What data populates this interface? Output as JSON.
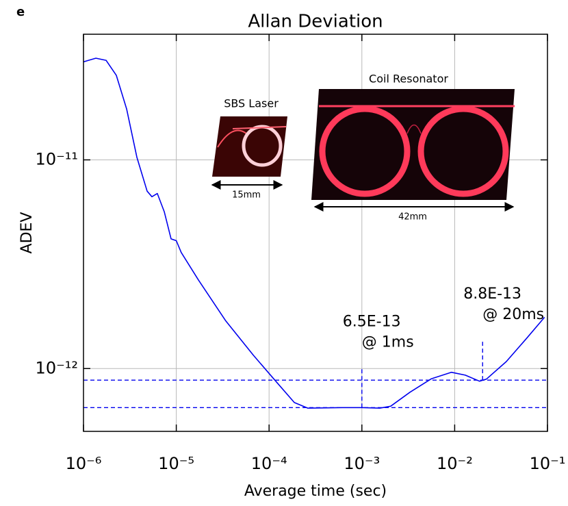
{
  "panel_label": "e",
  "chart_data": {
    "type": "line",
    "title": "Allan Deviation",
    "xlabel": "Average time (sec)",
    "ylabel": "ADEV",
    "xscale": "log",
    "yscale": "log",
    "grid": true,
    "xlim": [
      1e-06,
      0.1
    ],
    "ylim": [
      5e-13,
      4e-11
    ],
    "xticks": [
      {
        "value": 1e-06,
        "label": "10⁻⁶"
      },
      {
        "value": 1e-05,
        "label": "10⁻⁵"
      },
      {
        "value": 0.0001,
        "label": "10⁻⁴"
      },
      {
        "value": 0.001,
        "label": "10⁻³"
      },
      {
        "value": 0.01,
        "label": "10⁻²"
      },
      {
        "value": 0.1,
        "label": "10⁻¹"
      }
    ],
    "yticks": [
      {
        "value": 1e-12,
        "label": "10⁻¹²"
      },
      {
        "value": 1e-11,
        "label": "10⁻¹¹"
      }
    ],
    "series": [
      {
        "color": "#0000ee",
        "x": [
          1e-06,
          1.36e-06,
          1.75e-06,
          2.26e-06,
          2.92e-06,
          3.76e-06,
          4.85e-06,
          5.46e-06,
          6.25e-06,
          7.42e-06,
          8.79e-06,
          1e-05,
          1.13e-05,
          1.73e-05,
          3.42e-05,
          6.75e-05,
          0.000112,
          0.000187,
          0.000262,
          0.000614,
          0.001,
          0.00156,
          0.00204,
          0.0033,
          0.0056,
          0.0092,
          0.013,
          0.0185,
          0.022,
          0.036,
          0.06,
          0.093
        ],
        "values": [
          2.95e-11,
          3.07e-11,
          3e-11,
          2.54e-11,
          1.75e-11,
          1.03e-11,
          7.08e-12,
          6.66e-12,
          6.9e-12,
          5.65e-12,
          4.18e-12,
          4.1e-12,
          3.6e-12,
          2.66e-12,
          1.69e-12,
          1.16e-12,
          8.93e-13,
          6.87e-13,
          6.46e-13,
          6.5e-13,
          6.5e-13,
          6.46e-13,
          6.6e-13,
          7.7e-13,
          8.93e-13,
          9.6e-13,
          9.3e-13,
          8.7e-13,
          8.9e-13,
          1.08e-12,
          1.4e-12,
          1.76e-12
        ]
      }
    ],
    "annotations": [
      {
        "x": 0.001,
        "y": 6.5e-13,
        "text": [
          "6.5E-13",
          "@ 1ms"
        ],
        "color": "#0000ee"
      },
      {
        "x": 0.02,
        "y": 8.8e-13,
        "text": [
          "8.8E-13",
          "@ 20ms"
        ],
        "color": "#0000ee"
      }
    ],
    "insets": [
      {
        "title": "SBS Laser",
        "scale": "15mm"
      },
      {
        "title": "Coil Resonator",
        "scale": "42mm"
      }
    ]
  }
}
